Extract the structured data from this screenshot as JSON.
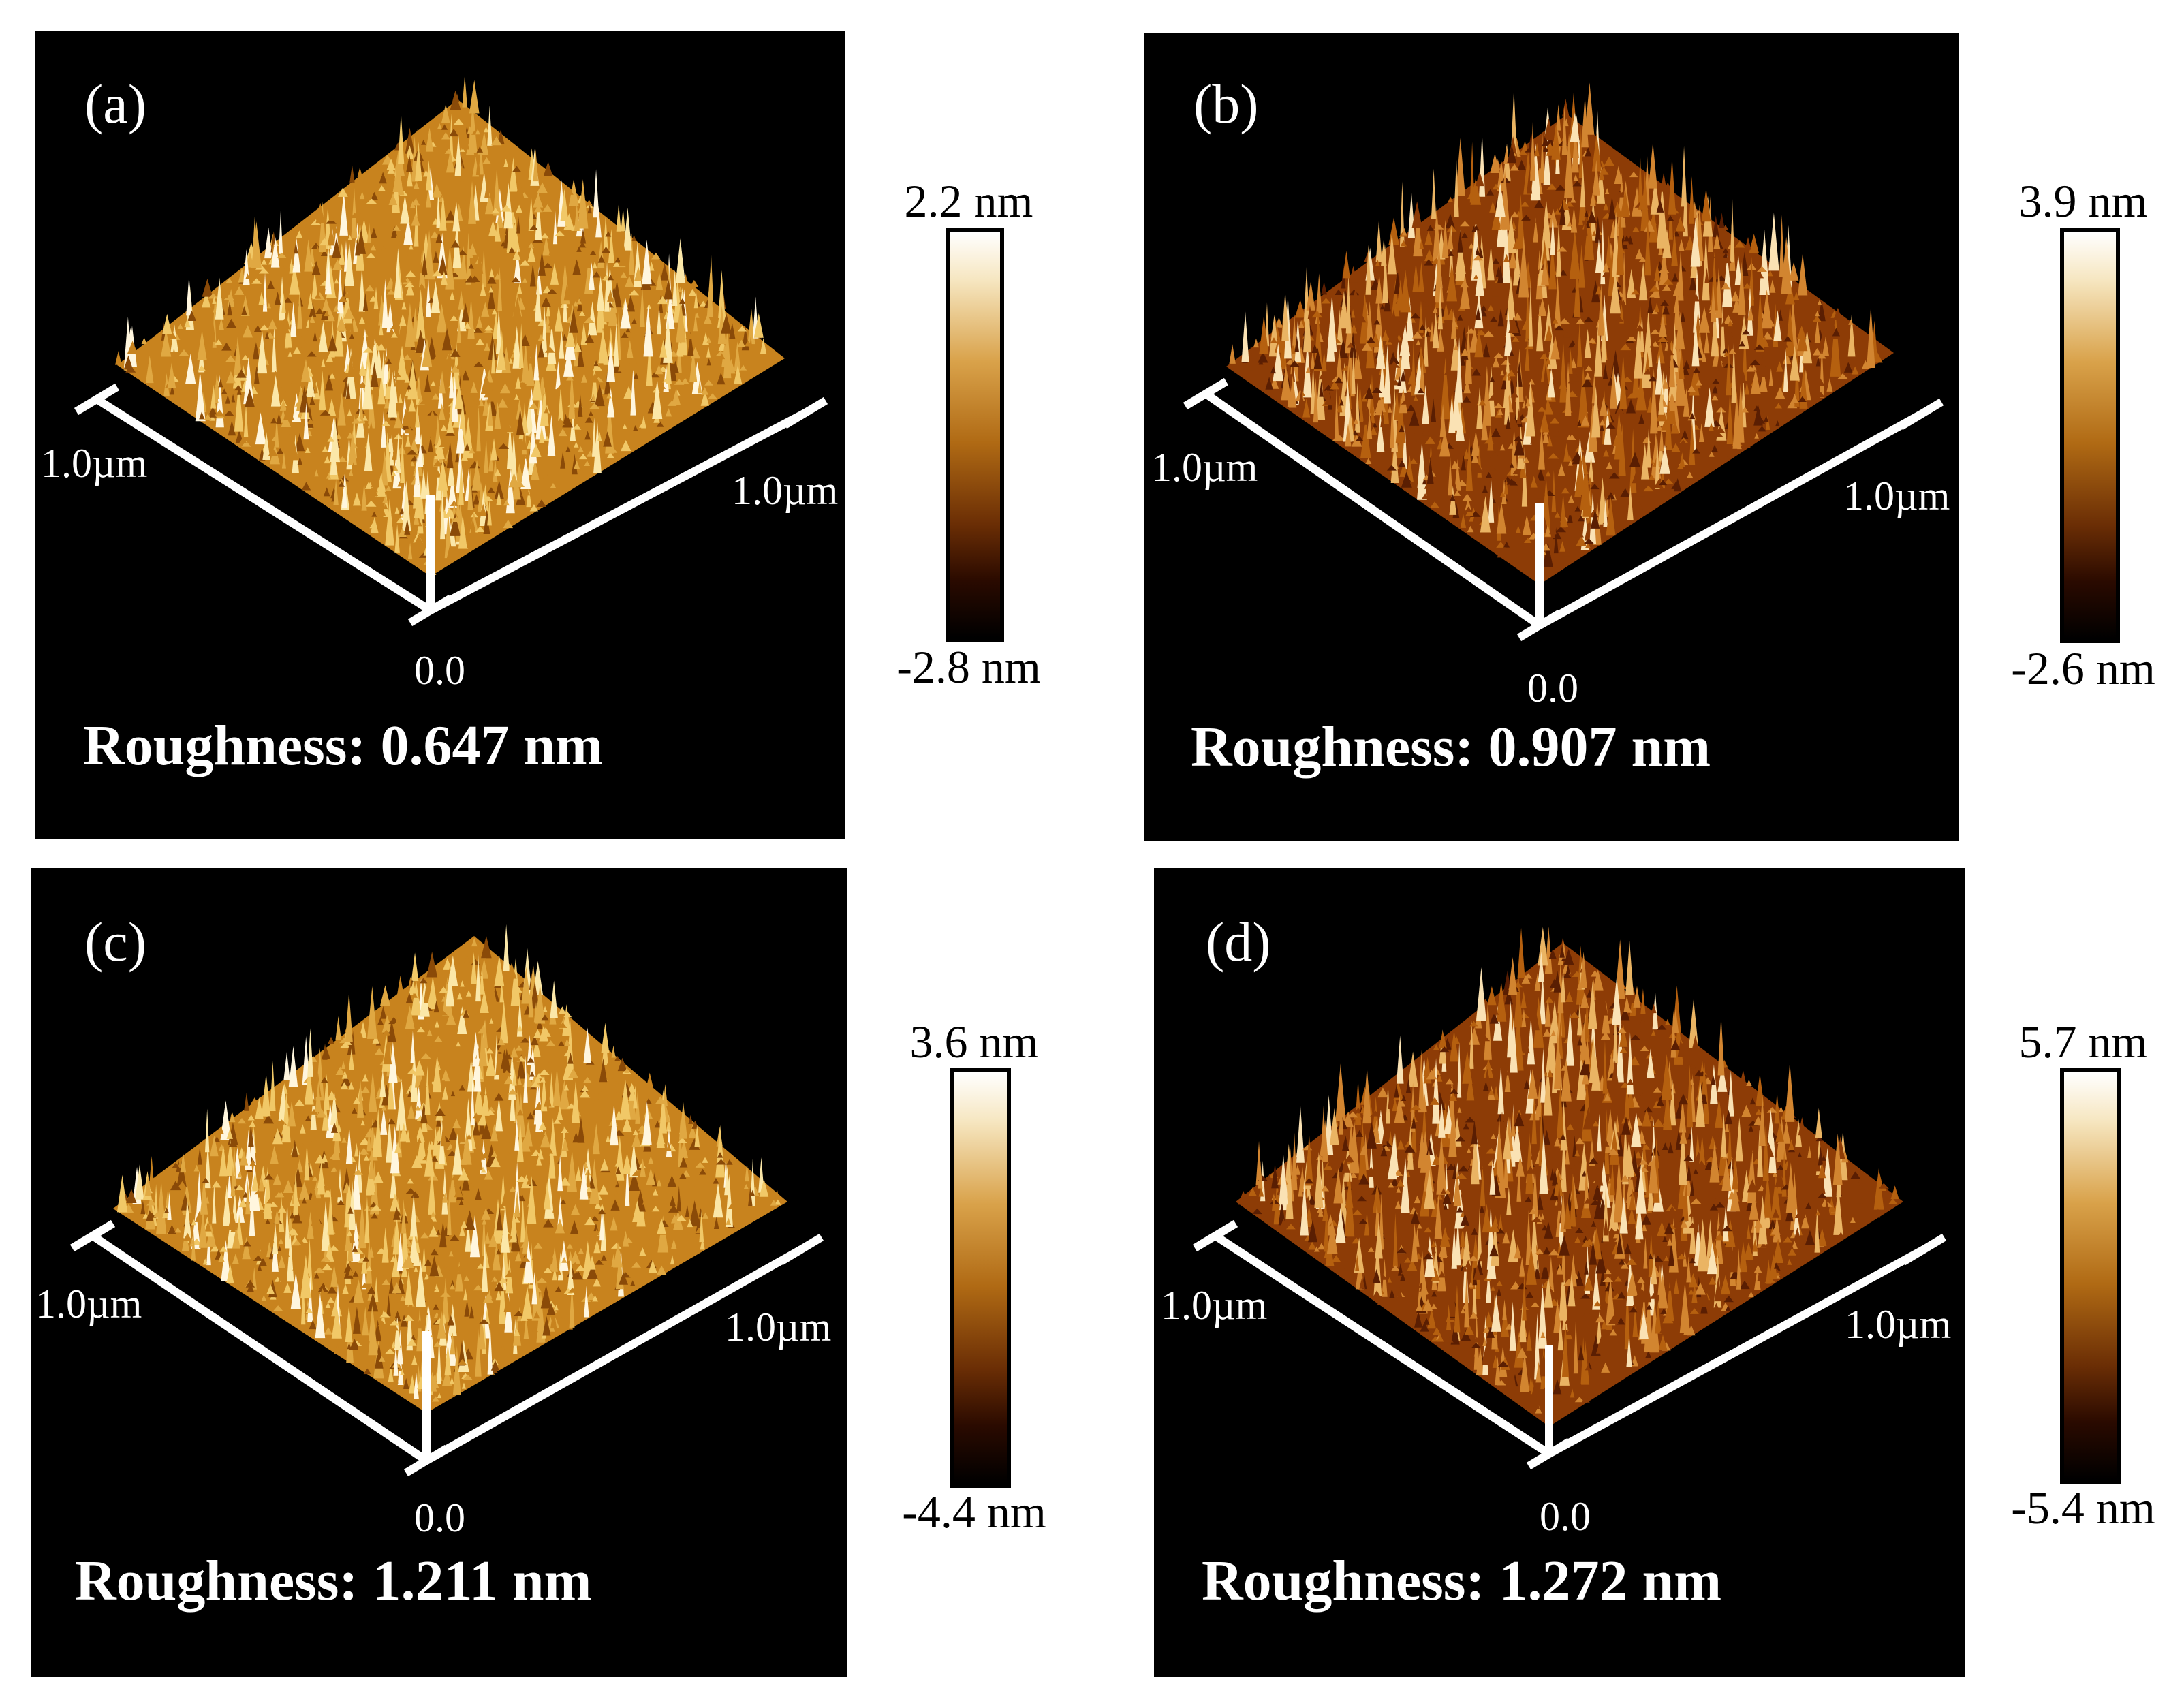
{
  "panels": [
    {
      "letter": "(a)",
      "roughness": "Roughness: 0.647 nm",
      "axis_left": "1.0µm",
      "axis_right": "1.0µm",
      "origin": "0.0",
      "cbar_max": "2.2 nm",
      "cbar_min": "-2.8 nm"
    },
    {
      "letter": "(b)",
      "roughness": "Roughness: 0.907 nm",
      "axis_left": "1.0µm",
      "axis_right": "1.0µm",
      "origin": "0.0",
      "cbar_max": "3.9 nm",
      "cbar_min": "-2.6 nm"
    },
    {
      "letter": "(c)",
      "roughness": "Roughness: 1.211 nm",
      "axis_left": "1.0µm",
      "axis_right": "1.0µm",
      "origin": "0.0",
      "cbar_max": "3.6 nm",
      "cbar_min": "-4.4 nm"
    },
    {
      "letter": "(d)",
      "roughness": "Roughness: 1.272 nm",
      "axis_left": "1.0µm",
      "axis_right": "1.0µm",
      "origin": "0.0",
      "cbar_max": "5.7 nm",
      "cbar_min": "-5.4 nm"
    }
  ],
  "colors": {
    "panel_bg": "#000000",
    "surface_light": "#f0c060",
    "surface_dark": "#8a3a00",
    "axis": "#ffffff"
  },
  "surface_style": [
    "light",
    "dark",
    "light",
    "dark"
  ]
}
